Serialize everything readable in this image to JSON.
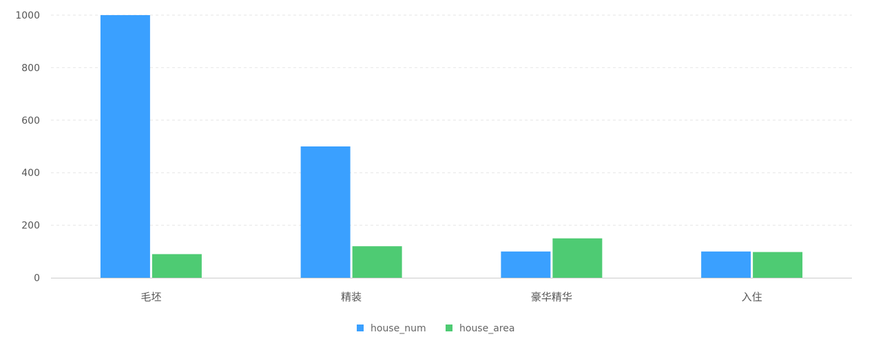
{
  "chart_data": {
    "type": "bar",
    "categories": [
      "毛坯",
      "精装",
      "豪华精华",
      "入住"
    ],
    "series": [
      {
        "name": "house_num",
        "values": [
          1000,
          500,
          100,
          100
        ],
        "color": "#3aa0ff"
      },
      {
        "name": "house_area",
        "values": [
          90,
          120,
          150,
          98
        ],
        "color": "#4ecb73"
      }
    ],
    "ylim": [
      0,
      1000
    ],
    "yticks": [
      0,
      200,
      400,
      600,
      800,
      1000
    ],
    "grid": true,
    "legend": "bottom-center",
    "colors": {
      "gridline": "#e6e6e6",
      "axis": "#cccccc",
      "text": "#555555",
      "legend_text": "#666666"
    }
  }
}
